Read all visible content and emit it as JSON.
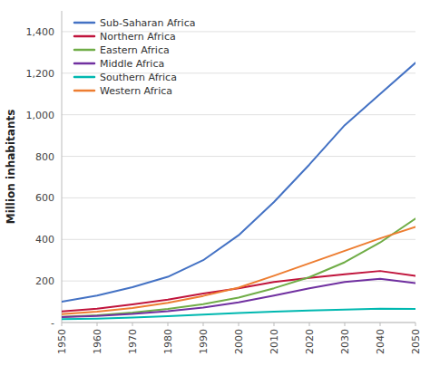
{
  "chart_data": {
    "type": "line",
    "ylabel": "Million inhabitants",
    "x": [
      1950,
      1960,
      1970,
      1980,
      1990,
      2000,
      2010,
      2020,
      2030,
      2040,
      2050
    ],
    "xlim": [
      1950,
      2050
    ],
    "xticks": [
      1950,
      1960,
      1970,
      1980,
      1990,
      2000,
      2010,
      2020,
      2030,
      2040,
      2050
    ],
    "ylim": [
      0,
      1500
    ],
    "yticks": [
      {
        "value": 0,
        "label": "-"
      },
      200,
      400,
      600,
      800,
      {
        "value": 1000,
        "label": "1,000"
      },
      {
        "value": 1200,
        "label": "1,200"
      },
      {
        "value": 1400,
        "label": "1,400"
      }
    ],
    "grid": "y",
    "legend": "upper left",
    "series": [
      {
        "name": "Sub-Saharan Africa",
        "color": "#4472C4",
        "values": [
          100,
          130,
          170,
          220,
          300,
          420,
          580,
          760,
          950,
          1100,
          1250
        ]
      },
      {
        "name": "Northern Africa",
        "color": "#C0143C",
        "values": [
          53,
          67,
          87,
          110,
          140,
          165,
          195,
          215,
          232,
          248,
          225
        ]
      },
      {
        "name": "Eastern Africa",
        "color": "#70AD47",
        "values": [
          27,
          35,
          48,
          65,
          88,
          120,
          165,
          218,
          290,
          385,
          500
        ]
      },
      {
        "name": "Middle Africa",
        "color": "#7030A0",
        "values": [
          26,
          32,
          41,
          54,
          72,
          97,
          130,
          165,
          195,
          210,
          190
        ]
      },
      {
        "name": "Southern Africa",
        "color": "#00B8B0",
        "values": [
          16,
          19,
          24,
          30,
          38,
          46,
          52,
          58,
          62,
          66,
          65
        ]
      },
      {
        "name": "Western Africa",
        "color": "#ED7D31",
        "values": [
          40,
          52,
          70,
          95,
          128,
          168,
          225,
          285,
          345,
          405,
          460
        ]
      }
    ]
  }
}
